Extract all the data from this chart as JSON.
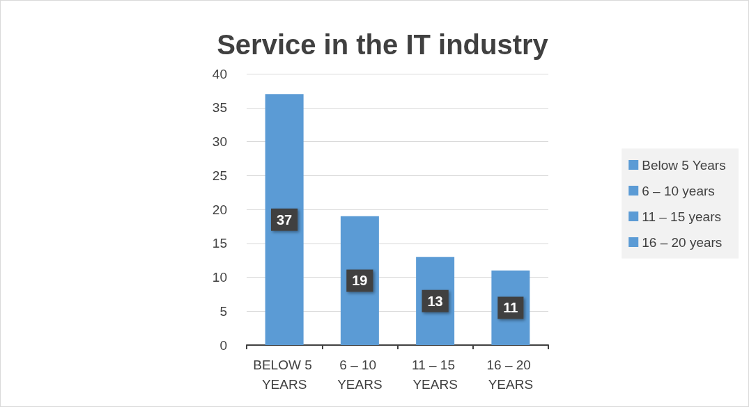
{
  "chart_data": {
    "type": "bar",
    "title": "Service in the IT industry",
    "categories": [
      "BELOW 5 YEARS",
      "6 – 10 YEARS",
      "11 – 15 YEARS",
      "16 – 20 YEARS"
    ],
    "series": [
      {
        "name": "Below 5 Years",
        "color": "#5b9bd5",
        "values": [
          37,
          null,
          null,
          null
        ]
      },
      {
        "name": "6 – 10 years",
        "color": "#5b9bd5",
        "values": [
          null,
          19,
          null,
          null
        ]
      },
      {
        "name": "11 – 15 years",
        "color": "#5b9bd5",
        "values": [
          null,
          null,
          13,
          null
        ]
      },
      {
        "name": "16 – 20 years",
        "color": "#5b9bd5",
        "values": [
          null,
          null,
          null,
          11
        ]
      }
    ],
    "ylim": [
      0,
      40
    ],
    "yticks": [
      0,
      5,
      10,
      15,
      20,
      25,
      30,
      35,
      40
    ],
    "grid": "y",
    "legend": "right",
    "data_labels": true
  }
}
